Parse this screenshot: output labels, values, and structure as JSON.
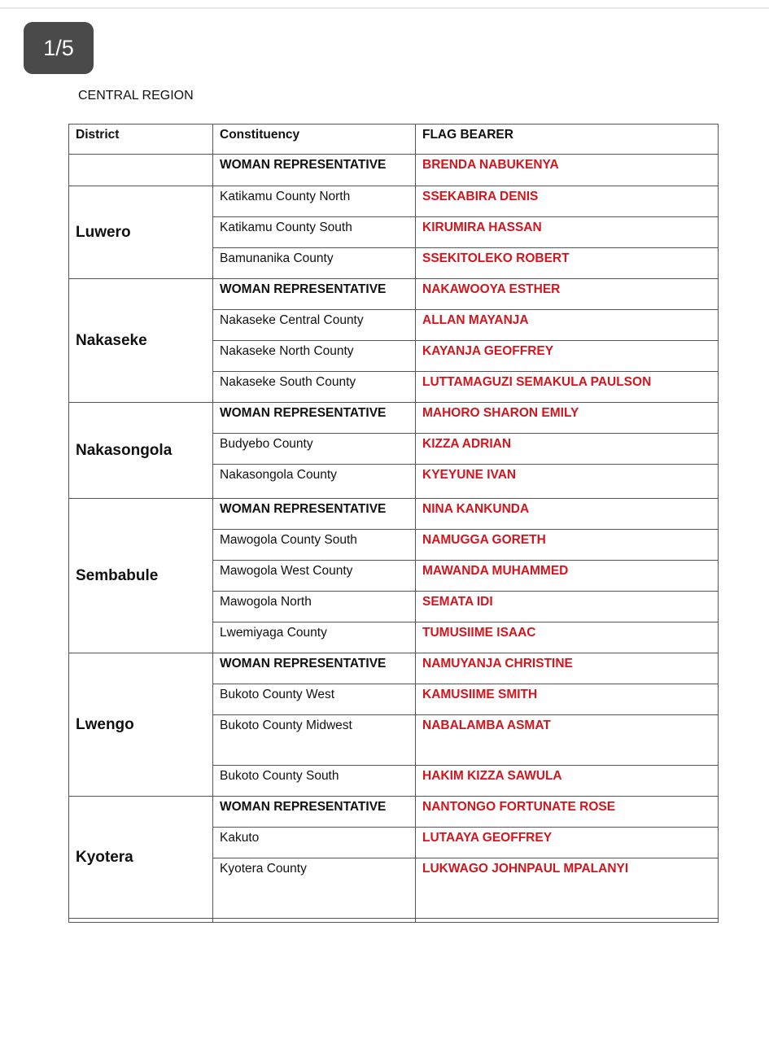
{
  "viewer": {
    "page_indicator": "1/5"
  },
  "document": {
    "region_title": "CENTRAL REGION",
    "table": {
      "headers": [
        "District",
        "Constituency",
        "FLAG BEARER"
      ],
      "groups": [
        {
          "district": "",
          "rows": [
            {
              "constituency": "WOMAN REPRESENTATIVE",
              "flag_bearer": "BRENDA NABUKENYA"
            }
          ]
        },
        {
          "district": "Luwero",
          "rows": [
            {
              "constituency": "Katikamu County North",
              "flag_bearer": "SSEKABIRA DENIS"
            },
            {
              "constituency": "Katikamu County South",
              "flag_bearer": "KIRUMIRA HASSAN"
            },
            {
              "constituency": "Bamunanika County",
              "flag_bearer": "SSEKITOLEKO ROBERT"
            }
          ]
        },
        {
          "district": "Nakaseke",
          "rows": [
            {
              "constituency": "WOMAN REPRESENTATIVE",
              "flag_bearer": "NAKAWOOYA ESTHER"
            },
            {
              "constituency": "Nakaseke Central County",
              "flag_bearer": "ALLAN MAYANJA"
            },
            {
              "constituency": "Nakaseke North County",
              "flag_bearer": "KAYANJA GEOFFREY"
            },
            {
              "constituency": "Nakaseke South County",
              "flag_bearer": "LUTTAMAGUZI SEMAKULA PAULSON"
            }
          ]
        },
        {
          "district": "Nakasongola",
          "rows": [
            {
              "constituency": "WOMAN REPRESENTATIVE",
              "flag_bearer": "MAHORO SHARON EMILY"
            },
            {
              "constituency": "Budyebo County",
              "flag_bearer": "KIZZA ADRIAN"
            },
            {
              "constituency": "Nakasongola County",
              "flag_bearer": "KYEYUNE IVAN"
            }
          ]
        },
        {
          "district": "Sembabule",
          "rows": [
            {
              "constituency": "WOMAN REPRESENTATIVE",
              "flag_bearer": "NINA KANKUNDA"
            },
            {
              "constituency": "Mawogola County South",
              "flag_bearer": "NAMUGGA GORETH"
            },
            {
              "constituency": "Mawogola West County",
              "flag_bearer": "MAWANDA MUHAMMED"
            },
            {
              "constituency": "Mawogola North",
              "flag_bearer": "SEMATA IDI"
            },
            {
              "constituency": "Lwemiyaga County",
              "flag_bearer": "TUMUSIIME ISAAC"
            }
          ]
        },
        {
          "district": "Lwengo",
          "rows": [
            {
              "constituency": "WOMAN REPRESENTATIVE",
              "flag_bearer": "NAMUYANJA CHRISTINE"
            },
            {
              "constituency": "Bukoto County West",
              "flag_bearer": "KAMUSIIME SMITH"
            },
            {
              "constituency": "Bukoto County Midwest",
              "flag_bearer": "NABALAMBA ASMAT"
            },
            {
              "constituency": "Bukoto County South",
              "flag_bearer": "HAKIM KIZZA SAWULA"
            }
          ]
        },
        {
          "district": "Kyotera",
          "rows": [
            {
              "constituency": "WOMAN REPRESENTATIVE",
              "flag_bearer": "NANTONGO FORTUNATE ROSE"
            },
            {
              "constituency": "Kakuto",
              "flag_bearer": "LUTAAYA GEOFFREY"
            },
            {
              "constituency": "Kyotera County",
              "flag_bearer": "LUKWAGO JOHNPAUL MPALANYI"
            }
          ]
        },
        {
          "district": "",
          "rows": [
            {
              "constituency": "",
              "flag_bearer": ""
            }
          ]
        }
      ]
    },
    "colors": {
      "flag_bearer_text": "#d0161e",
      "pager_bg": "#4a4a4a"
    }
  }
}
